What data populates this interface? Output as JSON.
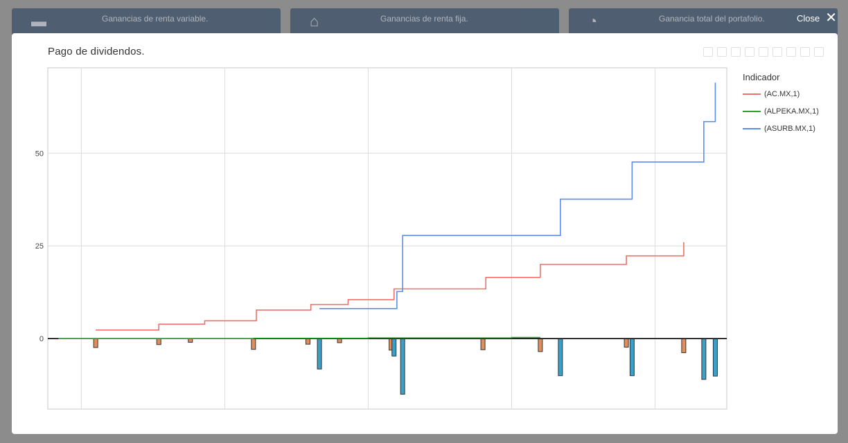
{
  "background_cards": [
    {
      "label": "Ganancias de renta variable.",
      "icon": "bar-chart-icon"
    },
    {
      "label": "Ganancias de renta fija.",
      "icon": "bank-icon"
    },
    {
      "label": "Ganancia total del portafolio.",
      "icon": "pie-chart-icon"
    }
  ],
  "close_label": "Close",
  "modal_title": "Pago de dividendos.",
  "chart_data": {
    "type": "line",
    "title": "Pago de dividendos.",
    "legend_title": "Indicador",
    "legend_position": "top-right",
    "grid": true,
    "ylim": [
      -19,
      73
    ],
    "xlim": [
      2000.83,
      2024.5
    ],
    "y_ticks": [
      0,
      25,
      50
    ],
    "series": [
      {
        "name": "(AC.MX,1)",
        "color": "#ef6f6a",
        "steps": [
          [
            2002.5,
            2.3
          ],
          [
            2004.7,
            3.9
          ],
          [
            2006.3,
            4.8
          ],
          [
            2008.1,
            7.7
          ],
          [
            2010.0,
            9.2
          ],
          [
            2011.3,
            10.5
          ],
          [
            2012.9,
            13.4
          ],
          [
            2016.1,
            16.5
          ],
          [
            2018.0,
            20.0
          ],
          [
            2021.0,
            22.3
          ],
          [
            2023.0,
            25.6
          ],
          [
            2023.0,
            26.0
          ]
        ]
      },
      {
        "name": "(ALPEKA.MX,1)",
        "color": "#2ca02c",
        "steps": [
          [
            2001.2,
            0.0
          ],
          [
            2008.0,
            0.1
          ],
          [
            2012.0,
            0.2
          ],
          [
            2017.0,
            0.3
          ],
          [
            2018.0,
            0.3
          ]
        ]
      },
      {
        "name": "(ASURB.MX,1)",
        "color": "#5b8def",
        "steps": [
          [
            2010.3,
            8.1
          ],
          [
            2013.0,
            12.7
          ],
          [
            2013.2,
            27.8
          ],
          [
            2018.7,
            37.6
          ],
          [
            2021.2,
            47.6
          ],
          [
            2023.7,
            58.5
          ],
          [
            2024.1,
            68.6
          ],
          [
            2024.1,
            69.0
          ]
        ]
      }
    ],
    "bars": [
      {
        "series": "(AC.MX,1)",
        "fill": "#e08e5b",
        "x": [
          2002.5,
          2004.7,
          2005.8,
          2008.0,
          2009.9,
          2011.0,
          2012.8,
          2016.0,
          2018.0,
          2021.0,
          2023.0
        ],
        "values": [
          -2.4,
          -1.6,
          -1.0,
          -2.9,
          -1.5,
          -1.1,
          -3.1,
          -3.0,
          -3.5,
          -2.3,
          -3.8
        ]
      },
      {
        "series": "(ASURB.MX,1)",
        "fill": "#3aa0c8",
        "x": [
          2010.3,
          2012.9,
          2013.2,
          2018.7,
          2021.2,
          2023.7,
          2024.1
        ],
        "values": [
          -8.2,
          -4.7,
          -15.0,
          -10.0,
          -10.0,
          -11.0,
          -10.1
        ]
      }
    ]
  }
}
